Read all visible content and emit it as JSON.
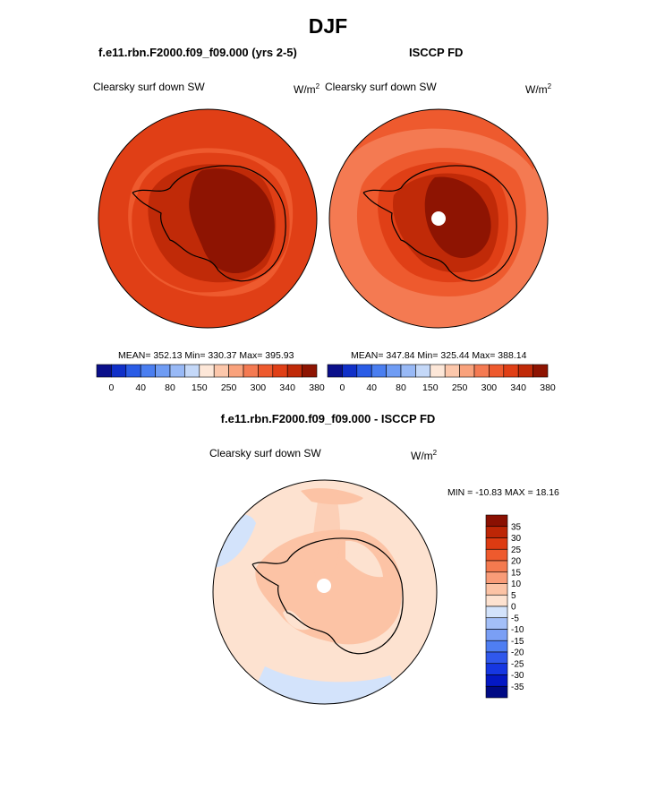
{
  "page_title": "DJF",
  "panels": {
    "model": {
      "header": "f.e11.rbn.F2000.f09_f09.000 (yrs 2-5)",
      "left_label": "Clearsky surf down SW",
      "units": "W/m",
      "units_sup": "2",
      "stats": "MEAN= 352.13  Min= 330.37  Max= 395.93"
    },
    "obs": {
      "header": "ISCCP FD",
      "left_label": "Clearsky surf down SW",
      "units": "W/m",
      "units_sup": "2",
      "stats": "MEAN= 347.84  Min= 325.44  Max= 388.14"
    },
    "diff": {
      "header": "f.e11.rbn.F2000.f09_f09.000 - ISCCP FD",
      "left_label": "Clearsky surf down SW",
      "units": "W/m",
      "units_sup": "2",
      "stats": "MIN = -10.83 MAX =  18.16"
    }
  },
  "colors": {
    "abs_scale": [
      "#0a0f8a",
      "#1030c8",
      "#2a5ce6",
      "#4a7ef0",
      "#6f9cf4",
      "#98b9f6",
      "#c4d8f8",
      "#fde7d8",
      "#fcc7ab",
      "#f9a27c",
      "#f47a52",
      "#ee5a2e",
      "#e03f16",
      "#c02a08",
      "#8e1402"
    ],
    "diff_scale": [
      "#000a84",
      "#0418c4",
      "#1637e2",
      "#3058ec",
      "#4f7ef2",
      "#7a9ff5",
      "#a3bff8",
      "#d3e3fb",
      "#fde2d0",
      "#fcc3a5",
      "#f99c78",
      "#f47a4f",
      "#ee5a2d",
      "#dd3b12",
      "#bd2606",
      "#8a1002"
    ]
  },
  "chart_data": [
    {
      "type": "heatmap",
      "title": "f.e11.rbn.F2000.f09_f09.000 (yrs 2-5)",
      "subtitle": "Clearsky surf down SW",
      "units": "W/m2",
      "colorbar_ticks": [
        "0",
        "40",
        "80",
        "150",
        "250",
        "300",
        "340",
        "380"
      ],
      "mean": 352.13,
      "min": 330.37,
      "max": 395.93
    },
    {
      "type": "heatmap",
      "title": "ISCCP FD",
      "subtitle": "Clearsky surf down SW",
      "units": "W/m2",
      "colorbar_ticks": [
        "0",
        "40",
        "80",
        "150",
        "250",
        "300",
        "340",
        "380"
      ],
      "mean": 347.84,
      "min": 325.44,
      "max": 388.14
    },
    {
      "type": "heatmap",
      "title": "f.e11.rbn.F2000.f09_f09.000 - ISCCP FD",
      "subtitle": "Clearsky surf down SW",
      "units": "W/m2",
      "colorbar_ticks": [
        "35",
        "30",
        "25",
        "20",
        "15",
        "10",
        "5",
        "0",
        "-5",
        "-10",
        "-15",
        "-20",
        "-25",
        "-30",
        "-35"
      ],
      "min": -10.83,
      "max": 18.16
    }
  ]
}
